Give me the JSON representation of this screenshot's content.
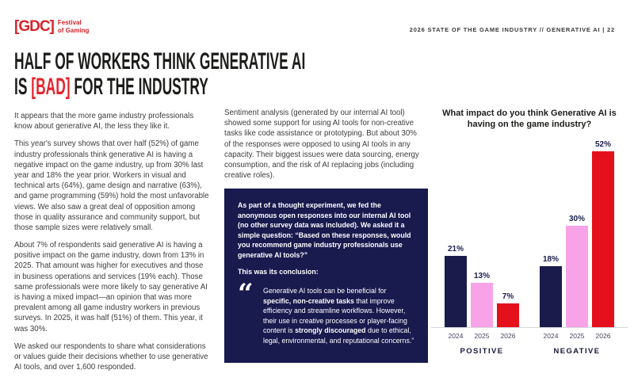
{
  "brand": {
    "logo_bracket": "[GDC]",
    "logo_line1": "Festival",
    "logo_line2": "of Gaming",
    "red": "#d5232b"
  },
  "header": {
    "meta": "2026 STATE OF THE GAME INDUSTRY  //  GENERATIVE AI  |  22"
  },
  "title": {
    "line1": "HALF OF WORKERS THINK GENERATIVE AI",
    "line2_pre": "IS ",
    "line2_accent": "[BAD]",
    "line2_post": " FOR THE INDUSTRY",
    "accent_color": "#e5242c"
  },
  "col1": {
    "p1": "It appears that the more game industry professionals know about generative AI, the less they like it.",
    "p2": "This year's survey shows that over half (52%) of game industry professionals think generative AI is having a negative impact on the game industry, up from 30% last year and 18% the year prior. Workers in visual and technical arts (64%), game design and narrative (63%), and game programming (59%) hold the most unfavorable views. We also saw a great deal of opposition among those in quality assurance and community support, but those sample sizes were relatively small.",
    "p3": "About 7% of respondents said generative AI is having a positive impact on the game industry, down from 13% in 2025. That amount was higher for executives and those in business operations and services (19% each). Those same professionals were more likely to say generative AI is having a mixed impact—an opinion that was more prevalent among all game industry workers in previous surveys. In 2025, it was half (51%) of them. This year, it was 30%.",
    "p4": "We asked our respondents to share what considerations or values guide their decisions whether to use generative AI tools, and over 1,600 responded."
  },
  "col2": {
    "p1": "Sentiment analysis (generated by our internal AI tool) showed some support for using AI tools for non-creative tasks like code assistance or prototyping. But about 30% of the responses were opposed to using AI tools in any capacity. Their biggest issues were data sourcing, energy consumption, and the risk of AI replacing jobs (including creative roles)."
  },
  "insight_box": {
    "p1_pre": "As part of a thought experiment, we fed the anonymous open responses into our internal AI tool (no other survey data was included). We asked it a simple question: ",
    "p1_question": "“Based on these responses, would you recommend game industry professionals use generative AI tools?”",
    "p2": "This was its conclusion:",
    "quote_mark": "“",
    "quote_part1": "Generative AI tools can be beneficial for ",
    "quote_bold1": "specific, non-creative tasks",
    "quote_part2": " that improve efficiency and streamline workflows. However, their use in creative processes or player-facing content is ",
    "quote_bold2": "strongly discouraged",
    "quote_part3": " due to ethical, legal, environmental, and reputational concerns.”",
    "background": "#191a4e"
  },
  "chart_data": {
    "type": "bar",
    "title": "What impact do you think Generative AI is having on the game industry?",
    "categories": [
      "POSITIVE",
      "NEGATIVE"
    ],
    "x_tick_labels": [
      "2024",
      "2025",
      "2026"
    ],
    "groups": [
      {
        "label": "POSITIVE",
        "values": [
          21,
          13,
          7
        ]
      },
      {
        "label": "NEGATIVE",
        "values": [
          18,
          30,
          52
        ]
      }
    ],
    "series": [
      {
        "name": "2024",
        "values": [
          21,
          18
        ],
        "color": "#1b1b4b"
      },
      {
        "name": "2025",
        "values": [
          13,
          30
        ],
        "color": "#f8a3e8"
      },
      {
        "name": "2026",
        "values": [
          7,
          52
        ],
        "color": "#e4111c"
      }
    ],
    "series_colors": {
      "2024": "#1b1b4b",
      "2025": "#f8a3e8",
      "2026": "#e4111c"
    },
    "unit": "%",
    "ylim": [
      0,
      56
    ],
    "grid": false,
    "legend": "none",
    "value_labels": [
      "21%",
      "13%",
      "7%",
      "18%",
      "30%",
      "52%"
    ]
  }
}
